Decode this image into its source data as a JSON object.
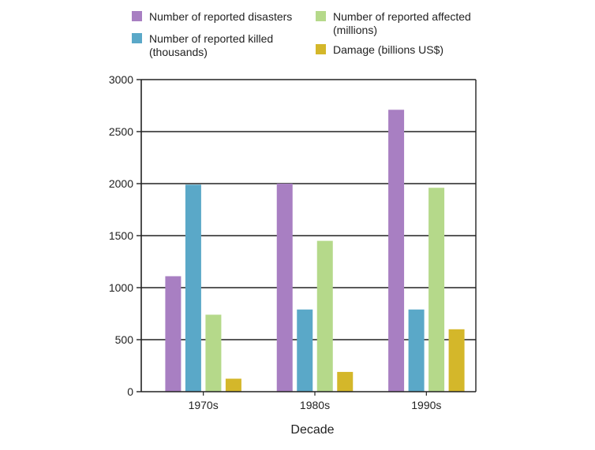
{
  "chart_data": {
    "type": "bar",
    "title": "",
    "xlabel": "Decade",
    "ylabel": "",
    "categories": [
      "1970s",
      "1980s",
      "1990s"
    ],
    "ylim": [
      0,
      3000
    ],
    "yticks": [
      0,
      500,
      1000,
      1500,
      2000,
      2500,
      3000
    ],
    "grid": true,
    "legend_position": "top",
    "series": [
      {
        "name": "Number of reported disasters",
        "color": "#a87fc2",
        "values": [
          1110,
          2000,
          2710
        ]
      },
      {
        "name": "Number of reported killed (thousands)",
        "color": "#5aa8c8",
        "values": [
          1990,
          790,
          790
        ]
      },
      {
        "name": "Number of reported affected (millions)",
        "color": "#b5d98a",
        "values": [
          740,
          1450,
          1960
        ]
      },
      {
        "name": "Damage (billions US$)",
        "color": "#d4b72a",
        "values": [
          125,
          190,
          600
        ]
      }
    ],
    "legend": {
      "items": [
        {
          "lines": [
            "Number of reported disasters"
          ]
        },
        {
          "lines": [
            "Number of reported killed",
            "(thousands)"
          ]
        },
        {
          "lines": [
            "Number of reported affected",
            "(millions)"
          ]
        },
        {
          "lines": [
            "Damage (billions US$)"
          ]
        }
      ]
    }
  }
}
